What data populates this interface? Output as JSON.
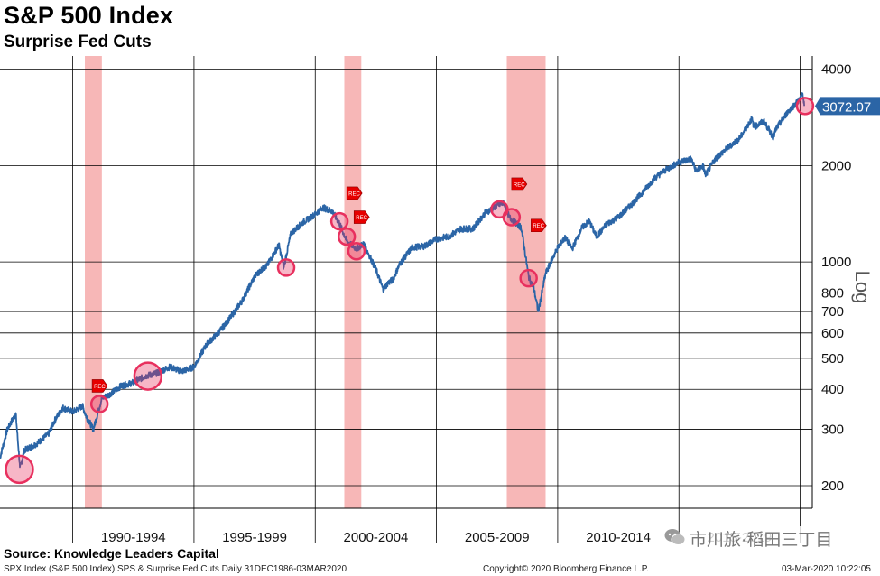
{
  "header": {
    "title": "S&P 500 Index",
    "subtitle": "Surprise Fed Cuts"
  },
  "source": "Source: Knowledge Leaders Capital",
  "footer": {
    "left": "SPX Index (S&P 500 Index) SPS & Surprise Fed Cuts  Daily 31DEC1986-03MAR2020",
    "center": "Copyright© 2020 Bloomberg Finance L.P.",
    "right": "03-Mar-2020 10:22:05"
  },
  "watermark": "市川旅·稻田三丁目",
  "colors": {
    "line": "#2b65a6",
    "recession": "#f7b7b7",
    "marker": "#e8305e",
    "rec_flag": "#e60000",
    "last_label_bg": "#2b65a6"
  },
  "chart_data": {
    "type": "line",
    "y_scale": "log",
    "y_axis_label": "Log",
    "y_ticks": [
      200,
      300,
      400,
      500,
      600,
      700,
      800,
      1000,
      2000,
      4000
    ],
    "ylim": [
      170,
      4400
    ],
    "xlim": [
      1987.0,
      2020.5
    ],
    "x_ticks": [
      "1990-1994",
      "1995-1999",
      "2000-2004",
      "2005-2009",
      "2010-2014",
      "2015-2019"
    ],
    "x_period_starts": [
      1990,
      1995,
      2000,
      2005,
      2010,
      2015,
      2020
    ],
    "last_value_label": "3072.07",
    "last_value": 3072.07,
    "recessions": [
      [
        1990.5,
        1991.2
      ],
      [
        2001.2,
        2001.9
      ],
      [
        2007.9,
        2009.5
      ]
    ],
    "rec_flags": [
      {
        "x": 1990.8,
        "y": 410,
        "label": "REC"
      },
      {
        "x": 2001.3,
        "y": 1640,
        "label": "REC"
      },
      {
        "x": 2001.6,
        "y": 1380,
        "label": "REC"
      },
      {
        "x": 2008.1,
        "y": 1750,
        "label": "REC"
      },
      {
        "x": 2008.9,
        "y": 1300,
        "label": "REC"
      }
    ],
    "surprise_cuts": [
      {
        "x": 1987.8,
        "y": 225,
        "size": "large"
      },
      {
        "x": 1991.1,
        "y": 360,
        "size": "small"
      },
      {
        "x": 1993.1,
        "y": 440,
        "size": "large"
      },
      {
        "x": 1998.8,
        "y": 960,
        "size": "small"
      },
      {
        "x": 2001.0,
        "y": 1340,
        "size": "small"
      },
      {
        "x": 2001.3,
        "y": 1200,
        "size": "small"
      },
      {
        "x": 2001.7,
        "y": 1080,
        "size": "small"
      },
      {
        "x": 2007.6,
        "y": 1460,
        "size": "small"
      },
      {
        "x": 2008.1,
        "y": 1380,
        "size": "small"
      },
      {
        "x": 2008.8,
        "y": 890,
        "size": "small"
      },
      {
        "x": 2020.2,
        "y": 3072,
        "size": "small"
      }
    ],
    "series": [
      {
        "x": [
          1987.0,
          1987.3,
          1987.5,
          1987.65,
          1987.8,
          1987.82,
          1988.0,
          1988.5,
          1989.0,
          1989.3,
          1989.6,
          1990.0,
          1990.4,
          1990.55,
          1990.8,
          1990.85,
          1991.0,
          1991.2,
          1991.5,
          1992.0,
          1992.5,
          1993.0,
          1993.5,
          1994.0,
          1994.5,
          1995.0,
          1995.5,
          1996.0,
          1996.5,
          1997.0,
          1997.5,
          1997.8,
          1998.0,
          1998.5,
          1998.7,
          1999.0,
          1999.5,
          2000.0,
          2000.3,
          2000.7,
          2001.0,
          2001.3,
          2001.7,
          2002.0,
          2002.5,
          2002.8,
          2003.0,
          2003.2,
          2003.5,
          2004.0,
          2004.5,
          2005.0,
          2005.5,
          2006.0,
          2006.5,
          2007.0,
          2007.5,
          2007.8,
          2008.0,
          2008.5,
          2008.8,
          2008.9,
          2009.0,
          2009.2,
          2009.5,
          2010.0,
          2010.3,
          2010.6,
          2011.0,
          2011.3,
          2011.6,
          2011.8,
          2012.0,
          2012.5,
          2013.0,
          2013.5,
          2014.0,
          2014.5,
          2015.0,
          2015.5,
          2015.7,
          2016.0,
          2016.1,
          2016.5,
          2017.0,
          2017.5,
          2018.0,
          2018.1,
          2018.5,
          2018.9,
          2019.0,
          2019.5,
          2020.0,
          2020.1,
          2020.17
        ],
        "y": [
          245,
          300,
          320,
          335,
          240,
          225,
          258,
          270,
          290,
          325,
          350,
          340,
          355,
          330,
          305,
          300,
          330,
          375,
          385,
          410,
          420,
          440,
          450,
          470,
          455,
          470,
          550,
          600,
          670,
          760,
          900,
          950,
          970,
          1130,
          960,
          1230,
          1330,
          1410,
          1480,
          1440,
          1320,
          1160,
          1100,
          1140,
          950,
          820,
          860,
          880,
          990,
          1110,
          1120,
          1180,
          1200,
          1270,
          1270,
          1420,
          1500,
          1530,
          1380,
          1280,
          900,
          860,
          840,
          700,
          920,
          1110,
          1190,
          1100,
          1280,
          1340,
          1200,
          1250,
          1310,
          1380,
          1500,
          1650,
          1830,
          1950,
          2050,
          2100,
          1930,
          1990,
          1870,
          2100,
          2270,
          2430,
          2800,
          2640,
          2750,
          2450,
          2600,
          2950,
          3230,
          3380,
          3072
        ]
      }
    ]
  }
}
